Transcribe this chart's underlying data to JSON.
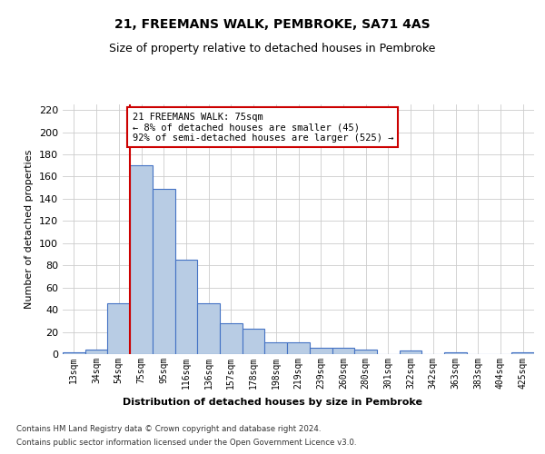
{
  "title": "21, FREEMANS WALK, PEMBROKE, SA71 4AS",
  "subtitle": "Size of property relative to detached houses in Pembroke",
  "xlabel": "Distribution of detached houses by size in Pembroke",
  "ylabel": "Number of detached properties",
  "categories": [
    "13sqm",
    "34sqm",
    "54sqm",
    "75sqm",
    "95sqm",
    "116sqm",
    "136sqm",
    "157sqm",
    "178sqm",
    "198sqm",
    "219sqm",
    "239sqm",
    "260sqm",
    "280sqm",
    "301sqm",
    "322sqm",
    "342sqm",
    "363sqm",
    "383sqm",
    "404sqm",
    "425sqm"
  ],
  "values": [
    2,
    4,
    46,
    170,
    149,
    85,
    46,
    28,
    23,
    11,
    11,
    6,
    6,
    4,
    0,
    3,
    0,
    2,
    0,
    0,
    2
  ],
  "bar_color": "#b8cce4",
  "bar_edge_color": "#4472c4",
  "highlight_line_index": 3,
  "highlight_line_color": "#cc0000",
  "annotation_text": "21 FREEMANS WALK: 75sqm\n← 8% of detached houses are smaller (45)\n92% of semi-detached houses are larger (525) →",
  "annotation_box_color": "#ffffff",
  "annotation_box_edge_color": "#cc0000",
  "footer_line1": "Contains HM Land Registry data © Crown copyright and database right 2024.",
  "footer_line2": "Contains public sector information licensed under the Open Government Licence v3.0.",
  "ylim": [
    0,
    225
  ],
  "yticks": [
    0,
    20,
    40,
    60,
    80,
    100,
    120,
    140,
    160,
    180,
    200,
    220
  ],
  "title_fontsize": 10,
  "subtitle_fontsize": 9,
  "background_color": "#ffffff",
  "grid_color": "#cccccc"
}
